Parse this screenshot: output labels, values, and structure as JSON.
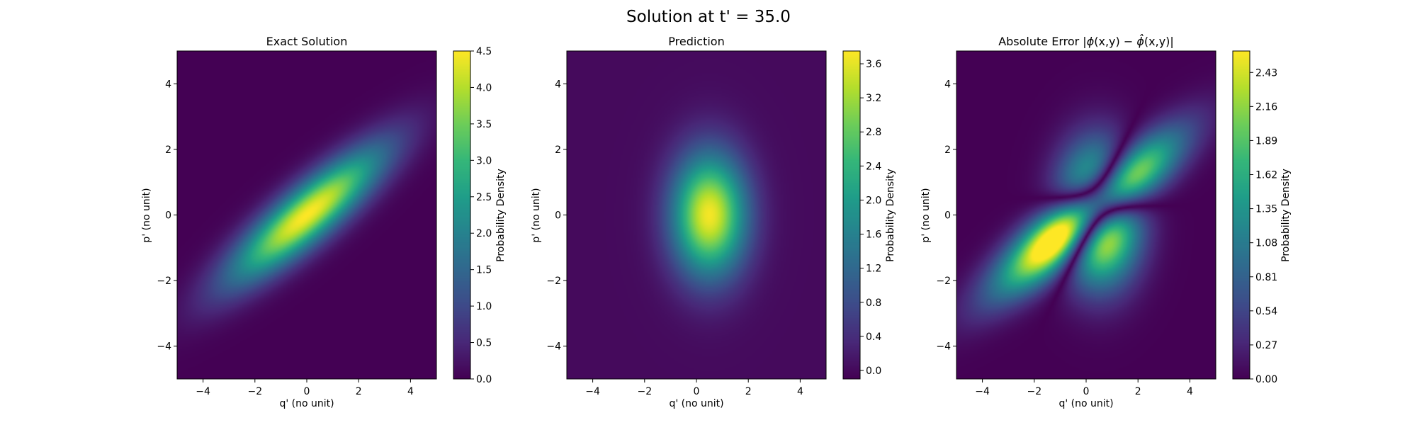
{
  "figure": {
    "suptitle": "Solution at t' = 35.0"
  },
  "chart_data": [
    {
      "type": "heatmap",
      "title": "Exact Solution",
      "xlabel": "q' (no unit)",
      "ylabel": "p' (no unit)",
      "xlim": [
        -5,
        5
      ],
      "ylim": [
        -5,
        5
      ],
      "xticks": [
        -4,
        -2,
        0,
        2,
        4
      ],
      "yticks": [
        -4,
        -2,
        0,
        2,
        4
      ],
      "xtick_labels": [
        "−4",
        "−2",
        "0",
        "2",
        "4"
      ],
      "ytick_labels": [
        "−4",
        "−2",
        "0",
        "2",
        "4"
      ],
      "colormap": "viridis",
      "colorbar": {
        "label": "Probability Density",
        "min": 0.0,
        "max": 4.5,
        "ticks": [
          0.0,
          0.5,
          1.0,
          1.5,
          2.0,
          2.5,
          3.0,
          3.5,
          4.0,
          4.5
        ],
        "tick_labels": [
          "0.0",
          "0.5",
          "1.0",
          "1.5",
          "2.0",
          "2.5",
          "3.0",
          "3.5",
          "4.0",
          "4.5"
        ]
      },
      "field": {
        "kind": "rotated-gaussian",
        "peak": 4.5,
        "center": [
          0.0,
          0.0
        ],
        "sigma_major": 2.4,
        "sigma_minor": 0.6,
        "major_axis_angle_deg": 33
      }
    },
    {
      "type": "heatmap",
      "title": "Prediction",
      "xlabel": "q' (no unit)",
      "ylabel": "p' (no unit)",
      "xlim": [
        -5,
        5
      ],
      "ylim": [
        -5,
        5
      ],
      "xticks": [
        -4,
        -2,
        0,
        2,
        4
      ],
      "yticks": [
        -4,
        -2,
        0,
        2,
        4
      ],
      "xtick_labels": [
        "−4",
        "−2",
        "0",
        "2",
        "4"
      ],
      "ytick_labels": [
        "−4",
        "−2",
        "0",
        "2",
        "4"
      ],
      "colormap": "viridis",
      "colorbar": {
        "label": "Probability Density",
        "min": -0.1,
        "max": 3.75,
        "ticks": [
          0.0,
          0.4,
          0.8,
          1.2,
          1.6,
          2.0,
          2.4,
          2.8,
          3.2,
          3.6
        ],
        "tick_labels": [
          "0.0",
          "0.4",
          "0.8",
          "1.2",
          "1.6",
          "2.0",
          "2.4",
          "2.8",
          "3.2",
          "3.6"
        ]
      },
      "field": {
        "kind": "gaussian",
        "peak": 3.7,
        "center": [
          0.5,
          0.0
        ],
        "sigma_x": 1.0,
        "sigma_y": 1.3
      }
    },
    {
      "type": "heatmap",
      "title": "Absolute Error |ϕ(x,y) − ϕ̂(x,y)|",
      "title_parts": {
        "prefix": "Absolute Error |",
        "phi": "ϕ",
        "vars": "(x,y)",
        "minus": " − ",
        "phihat": "ϕ̂",
        "suffix": "|"
      },
      "xlabel": "q' (no unit)",
      "ylabel": "p' (no unit)",
      "xlim": [
        -5,
        5
      ],
      "ylim": [
        -5,
        5
      ],
      "xticks": [
        -4,
        -2,
        0,
        2,
        4
      ],
      "yticks": [
        -4,
        -2,
        0,
        2,
        4
      ],
      "xtick_labels": [
        "−4",
        "−2",
        "0",
        "2",
        "4"
      ],
      "ytick_labels": [
        "−4",
        "−2",
        "0",
        "2",
        "4"
      ],
      "colormap": "viridis",
      "colorbar": {
        "label": "Probability Density",
        "min": 0.0,
        "max": 2.6,
        "ticks": [
          0.0,
          0.27,
          0.54,
          0.81,
          1.08,
          1.35,
          1.62,
          1.89,
          2.16,
          2.43
        ],
        "tick_labels": [
          "0.00",
          "0.27",
          "0.54",
          "0.81",
          "1.08",
          "1.35",
          "1.62",
          "1.89",
          "2.16",
          "2.43"
        ]
      },
      "field": {
        "kind": "abs-difference",
        "of": [
          "Exact Solution",
          "Prediction"
        ]
      }
    }
  ]
}
